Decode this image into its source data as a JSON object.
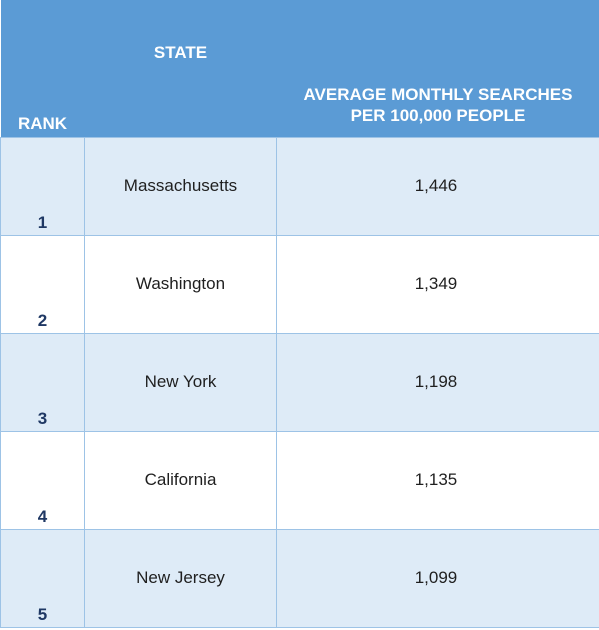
{
  "headers": {
    "rank": "RANK",
    "state": "STATE",
    "average_line1": "AVERAGE MONTHLY SEARCHES",
    "average_line2": "PER 100,000 PEOPLE"
  },
  "rows": [
    {
      "rank": "1",
      "state": "Massachusetts",
      "average": "1,446"
    },
    {
      "rank": "2",
      "state": "Washington",
      "average": "1,349"
    },
    {
      "rank": "3",
      "state": "New York",
      "average": "1,198"
    },
    {
      "rank": "4",
      "state": "California",
      "average": "1,135"
    },
    {
      "rank": "5",
      "state": "New Jersey",
      "average": "1,099"
    }
  ],
  "colors": {
    "header_bg": "#5b9bd5",
    "header_text": "#ffffff",
    "row_alt_bg": "#deebf7",
    "border": "#9dc3e6",
    "rank_text": "#1f3864"
  }
}
